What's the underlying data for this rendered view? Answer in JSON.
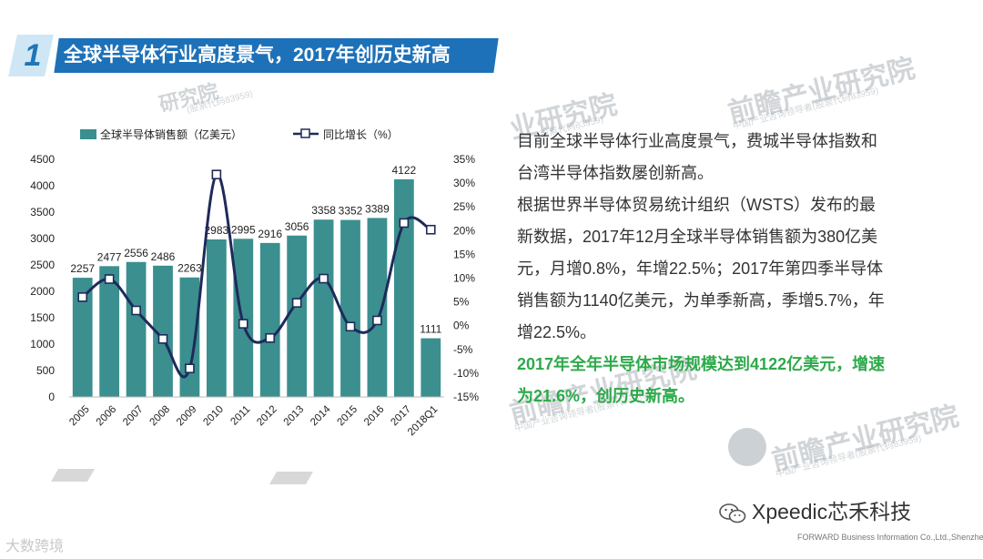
{
  "header": {
    "number": "1",
    "title": "全球半导体行业高度景气，2017年创历史新高"
  },
  "watermark": {
    "brand": "前瞻产业研究院",
    "brand_partial": "业研究院",
    "brand_partial2": "研究院",
    "sub": "(股票代码83959)",
    "sub2": "中国产业咨询领导者(股票代码83959)"
  },
  "description": {
    "para1": "目前全球半导体行业高度景气，费城半导体指数和台湾半导体指数屡创新高。",
    "para2": "根据世界半导体贸易统计组织（WSTS）发布的最新数据，2017年12月全球半导体销售额为380亿美元，月增0.8%，年增22.5%；2017年第四季半导体销售额为1140亿美元，为单季新高，季增5.7%，年增22.5%。",
    "highlight": "2017年全年半导体市场规模达到4122亿美元，增速为21.6%，创历史新高。"
  },
  "footer": {
    "wechat": "Xpeedic芯禾科技",
    "company": "FORWARD Business Information Co.,Ltd.,Shenzhen",
    "left_mark": "大数跨境"
  },
  "colors": {
    "bar": "#3b8f8f",
    "line": "#1f2a5a",
    "header_bg": "#1d71b8",
    "highlight": "#2daa4a"
  },
  "chart_data": {
    "type": "bar",
    "title": "",
    "categories": [
      "2005",
      "2006",
      "2007",
      "2008",
      "2009",
      "2010",
      "2011",
      "2012",
      "2013",
      "2014",
      "2015",
      "2016",
      "2017",
      "2018Q1"
    ],
    "series": [
      {
        "name": "全球半导体销售额（亿美元）",
        "type": "bar",
        "axis": "left",
        "values": [
          2257,
          2477,
          2556,
          2486,
          2263,
          2983,
          2995,
          2916,
          3056,
          3358,
          3352,
          3389,
          4122,
          1111
        ]
      },
      {
        "name": "同比增长（%）",
        "type": "line",
        "axis": "right",
        "values": [
          6,
          9.8,
          3.2,
          -2.8,
          -9,
          31.8,
          0.4,
          -2.6,
          4.8,
          9.9,
          -0.2,
          1.1,
          21.6,
          20.2
        ]
      }
    ],
    "left_axis": {
      "ylim": [
        0,
        4500
      ],
      "ticks": [
        "0",
        "500",
        "1000",
        "1500",
        "2000",
        "2500",
        "3000",
        "3500",
        "4000",
        "4500"
      ]
    },
    "right_axis": {
      "ylim": [
        -15,
        35
      ],
      "ticks": [
        "-15%",
        "-10%",
        "-5%",
        "0%",
        "5%",
        "10%",
        "15%",
        "20%",
        "25%",
        "30%",
        "35%"
      ]
    },
    "legend": "top",
    "grid": false
  }
}
